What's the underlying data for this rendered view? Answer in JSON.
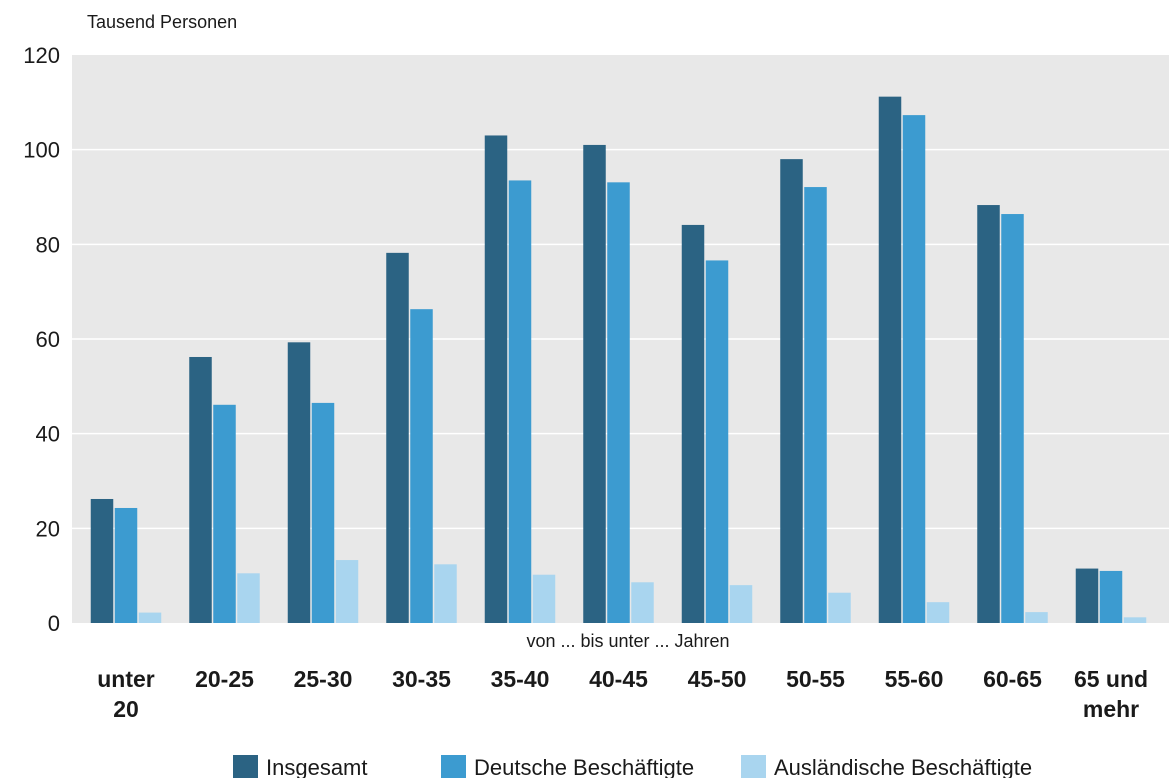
{
  "chart_data": {
    "type": "bar",
    "title": "",
    "unit_label": "Tausend Personen",
    "xlabel": "von ... bis unter ... Jahren",
    "ylabel": "",
    "ylim": [
      0,
      120
    ],
    "yticks": [
      "0",
      "20",
      "40",
      "60",
      "80",
      "100",
      "120"
    ],
    "grid": true,
    "legend_position": "bottom",
    "categories": [
      [
        "unter",
        "20"
      ],
      [
        "20-25"
      ],
      [
        "25-30"
      ],
      [
        "30-35"
      ],
      [
        "35-40"
      ],
      [
        "40-45"
      ],
      [
        "45-50"
      ],
      [
        "50-55"
      ],
      [
        "55-60"
      ],
      [
        "60-65"
      ],
      [
        "65 und",
        "mehr"
      ]
    ],
    "series": [
      {
        "name": "Insgesamt",
        "color": "#2b6383",
        "values": [
          26.2,
          56.2,
          59.3,
          78.2,
          103,
          101,
          84.1,
          98,
          111.2,
          88.3,
          11.5
        ]
      },
      {
        "name": "Deutsche Beschäftigte",
        "color": "#3c9bd0",
        "values": [
          24.3,
          46.1,
          46.5,
          66.3,
          93.5,
          93.1,
          76.6,
          92.1,
          107.3,
          86.4,
          11
        ]
      },
      {
        "name": "Ausländische Beschäftigte",
        "color": "#a9d5ef",
        "values": [
          2.2,
          10.5,
          13.3,
          12.4,
          10.2,
          8.6,
          8,
          6.4,
          4.4,
          2.3,
          1.2
        ]
      }
    ],
    "colors": {
      "plot_background": "#e8e8e8",
      "gridline": "#ffffff"
    }
  }
}
